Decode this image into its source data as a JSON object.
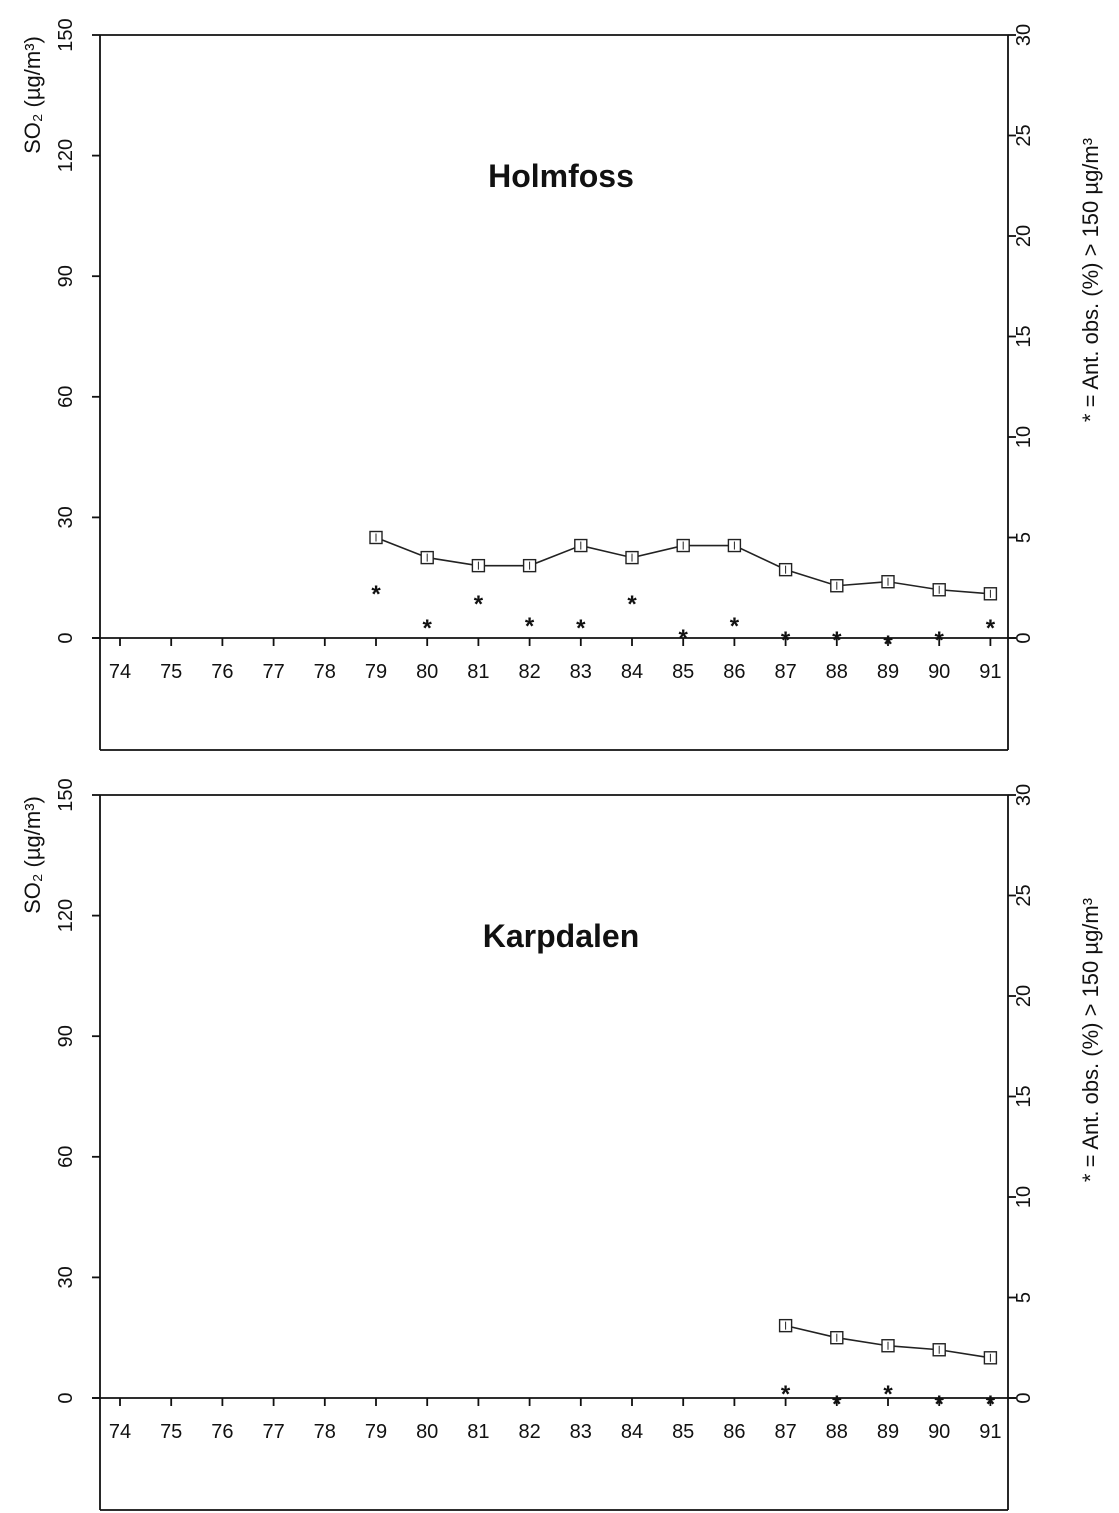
{
  "chart_data": [
    {
      "type": "line",
      "title": "Holmfoss",
      "ylabel_left": "SO₂ (µg/m³)",
      "ylabel_right": "* = Ant. obs. (%) > 150 µg/m³",
      "ylim_left": [
        0,
        150
      ],
      "ylim_right": [
        0,
        30
      ],
      "y_ticks_left": [
        "0",
        "30",
        "60",
        "90",
        "120",
        "150"
      ],
      "y_ticks_right": [
        "0",
        "5",
        "10",
        "15",
        "20",
        "25",
        "30"
      ],
      "categories": [
        "74",
        "75",
        "76",
        "77",
        "78",
        "79",
        "80",
        "81",
        "82",
        "83",
        "84",
        "85",
        "86",
        "87",
        "88",
        "89",
        "90",
        "91"
      ],
      "series": [
        {
          "axis": "left",
          "marker": "square",
          "x": [
            "79",
            "80",
            "81",
            "82",
            "83",
            "84",
            "85",
            "86",
            "87",
            "88",
            "89",
            "90",
            "91"
          ],
          "values": [
            25,
            20,
            18,
            18,
            23,
            20,
            23,
            23,
            17,
            13,
            14,
            12,
            11
          ]
        },
        {
          "axis": "right",
          "marker": "*",
          "x": [
            "79",
            "80",
            "81",
            "82",
            "83",
            "84",
            "85",
            "86",
            "87",
            "88",
            "89",
            "90",
            "91"
          ],
          "values": [
            2.5,
            0.8,
            2.0,
            0.9,
            0.8,
            2.0,
            0.3,
            0.9,
            0.2,
            0.2,
            0,
            0.2,
            0.8
          ]
        }
      ]
    },
    {
      "type": "line",
      "title": "Karpdalen",
      "ylabel_left": "SO₂ (µg/m³)",
      "ylabel_right": "* = Ant. obs. (%) > 150 µg/m³",
      "ylim_left": [
        0,
        150
      ],
      "ylim_right": [
        0,
        30
      ],
      "y_ticks_left": [
        "0",
        "30",
        "60",
        "90",
        "120",
        "150"
      ],
      "y_ticks_right": [
        "0",
        "5",
        "10",
        "15",
        "20",
        "25",
        "30"
      ],
      "categories": [
        "74",
        "75",
        "76",
        "77",
        "78",
        "79",
        "80",
        "81",
        "82",
        "83",
        "84",
        "85",
        "86",
        "87",
        "88",
        "89",
        "90",
        "91"
      ],
      "series": [
        {
          "axis": "left",
          "marker": "square",
          "x": [
            "87",
            "88",
            "89",
            "90",
            "91"
          ],
          "values": [
            18,
            15,
            13,
            12,
            10
          ]
        },
        {
          "axis": "right",
          "marker": "*",
          "x": [
            "87",
            "88",
            "89",
            "90",
            "91"
          ],
          "values": [
            0.5,
            0,
            0.5,
            0,
            0
          ]
        }
      ]
    }
  ]
}
